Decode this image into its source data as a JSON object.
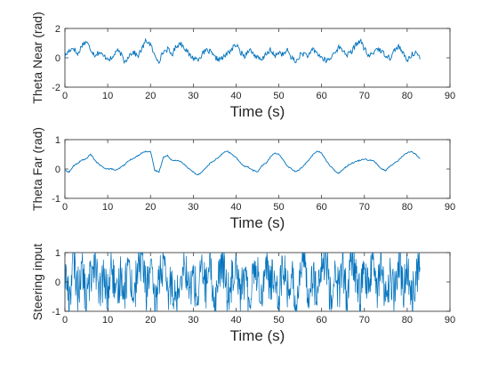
{
  "colors": {
    "line": "#0072BD",
    "axes": "#262626",
    "background": "#ffffff"
  },
  "chart_data": [
    {
      "type": "line",
      "xlabel": "Time (s)",
      "ylabel": "Theta Near (rad)",
      "xlim": [
        0,
        90
      ],
      "ylim": [
        -2,
        2
      ],
      "xticks": [
        "0",
        "10",
        "20",
        "30",
        "40",
        "50",
        "60",
        "70",
        "80",
        "90"
      ],
      "yticks": [
        "-2",
        "0",
        "2"
      ],
      "grid": false,
      "series": [
        {
          "x": [
            0,
            1,
            2,
            3,
            4,
            5,
            6,
            7,
            8,
            9,
            10,
            11,
            12,
            13,
            14,
            15,
            16,
            17,
            18,
            19,
            20,
            21,
            22,
            23,
            24,
            25,
            26,
            27,
            28,
            29,
            30,
            31,
            32,
            33,
            34,
            35,
            36,
            37,
            38,
            39,
            40,
            41,
            42,
            43,
            44,
            45,
            46,
            47,
            48,
            49,
            50,
            51,
            52,
            53,
            54,
            55,
            56,
            57,
            58,
            59,
            60,
            61,
            62,
            63,
            64,
            65,
            66,
            67,
            68,
            69,
            70,
            71,
            72,
            73,
            74,
            75,
            76,
            77,
            78,
            79,
            80,
            81,
            82,
            83
          ],
          "values": [
            0.1,
            0.5,
            0.7,
            0.2,
            0.9,
            1.1,
            0.6,
            0.2,
            0.4,
            0.1,
            0.0,
            -0.1,
            0.5,
            0.3,
            -0.3,
            0.2,
            0.4,
            0.1,
            0.6,
            1.2,
            0.9,
            0.1,
            -0.2,
            0.4,
            0.6,
            0.2,
            0.8,
            1.0,
            0.7,
            0.2,
            0.0,
            -0.1,
            0.2,
            0.5,
            0.4,
            0.0,
            -0.1,
            0.0,
            0.3,
            0.6,
            0.9,
            0.4,
            0.1,
            0.6,
            0.3,
            0.0,
            -0.2,
            0.3,
            0.5,
            0.1,
            0.4,
            0.2,
            0.5,
            0.0,
            -0.3,
            0.2,
            0.3,
            0.1,
            0.6,
            0.3,
            0.0,
            -0.2,
            -0.1,
            0.4,
            0.7,
            0.5,
            0.2,
            0.4,
            0.9,
            1.2,
            0.6,
            0.1,
            0.3,
            0.7,
            0.4,
            0.2,
            0.0,
            0.5,
            0.8,
            0.3,
            -0.2,
            0.2,
            0.4,
            -0.1
          ]
        }
      ]
    },
    {
      "type": "line",
      "xlabel": "Time (s)",
      "ylabel": "Theta Far (rad)",
      "xlim": [
        0,
        90
      ],
      "ylim": [
        -1,
        1
      ],
      "xticks": [
        "0",
        "10",
        "20",
        "30",
        "40",
        "50",
        "60",
        "70",
        "80",
        "90"
      ],
      "yticks": [
        "-1",
        "0",
        "1"
      ],
      "grid": false,
      "series": [
        {
          "x": [
            0,
            1,
            2,
            3,
            4,
            5,
            6,
            7,
            8,
            9,
            10,
            11,
            12,
            13,
            14,
            15,
            16,
            17,
            18,
            19,
            20,
            21,
            22,
            23,
            24,
            25,
            26,
            27,
            28,
            29,
            30,
            31,
            32,
            33,
            34,
            35,
            36,
            37,
            38,
            39,
            40,
            41,
            42,
            43,
            44,
            45,
            46,
            47,
            48,
            49,
            50,
            51,
            52,
            53,
            54,
            55,
            56,
            57,
            58,
            59,
            60,
            61,
            62,
            63,
            64,
            65,
            66,
            67,
            68,
            69,
            70,
            71,
            72,
            73,
            74,
            75,
            76,
            77,
            78,
            79,
            80,
            81,
            82,
            83
          ],
          "values": [
            -0.05,
            -0.1,
            0.1,
            0.2,
            0.3,
            0.35,
            0.5,
            0.3,
            0.15,
            0.05,
            0.0,
            0.0,
            -0.05,
            0.05,
            0.15,
            0.3,
            0.35,
            0.45,
            0.55,
            0.6,
            0.6,
            -0.05,
            -0.1,
            0.4,
            0.45,
            0.3,
            0.3,
            0.25,
            0.15,
            0.0,
            -0.1,
            -0.2,
            -0.1,
            0.05,
            0.2,
            0.3,
            0.4,
            0.55,
            0.6,
            0.5,
            0.4,
            0.2,
            0.1,
            0.05,
            -0.05,
            -0.1,
            0.1,
            0.2,
            0.4,
            0.55,
            0.5,
            0.3,
            0.1,
            0.0,
            -0.1,
            0.0,
            0.15,
            0.3,
            0.5,
            0.6,
            0.55,
            0.3,
            0.1,
            -0.05,
            -0.15,
            0.0,
            0.1,
            0.2,
            0.25,
            0.3,
            0.35,
            0.3,
            0.3,
            0.15,
            0.0,
            -0.05,
            0.1,
            0.2,
            0.3,
            0.45,
            0.55,
            0.6,
            0.5,
            0.35
          ]
        }
      ]
    },
    {
      "type": "line",
      "xlabel": "Time (s)",
      "ylabel": "Steering input",
      "xlim": [
        0,
        90
      ],
      "ylim": [
        -1,
        1
      ],
      "xticks": [
        "0",
        "10",
        "20",
        "30",
        "40",
        "50",
        "60",
        "70",
        "80",
        "90"
      ],
      "yticks": [
        "-1",
        "0",
        "1"
      ],
      "grid": false,
      "series": [
        {
          "x": [
            0,
            1,
            2,
            3,
            4,
            5,
            6,
            7,
            8,
            9,
            10,
            11,
            12,
            13,
            14,
            15,
            16,
            17,
            18,
            19,
            20,
            21,
            22,
            23,
            24,
            25,
            26,
            27,
            28,
            29,
            30,
            31,
            32,
            33,
            34,
            35,
            36,
            37,
            38,
            39,
            40,
            41,
            42,
            43,
            44,
            45,
            46,
            47,
            48,
            49,
            50,
            51,
            52,
            53,
            54,
            55,
            56,
            57,
            58,
            59,
            60,
            61,
            62,
            63,
            64,
            65,
            66,
            67,
            68,
            69,
            70,
            71,
            72,
            73,
            74,
            75,
            76,
            77,
            78,
            79,
            80,
            81,
            82,
            83
          ],
          "values": [
            0.4,
            -0.6,
            0.8,
            -0.3,
            0.5,
            -0.7,
            0.2,
            0.9,
            -0.5,
            0.1,
            -0.4,
            0.6,
            -0.8,
            0.3,
            -0.2,
            0.7,
            -0.6,
            0.4,
            0.9,
            -0.3,
            0.5,
            -0.9,
            0.2,
            0.6,
            -0.5,
            0.1,
            -0.7,
            0.3,
            0.8,
            -0.4,
            0.2,
            -0.6,
            0.5,
            -0.2,
            0.4,
            -0.8,
            0.3,
            0.6,
            -0.5,
            0.1,
            0.9,
            -0.4,
            0.2,
            -0.7,
            0.5,
            0.3,
            -0.6,
            0.8,
            -0.2,
            0.4,
            -0.5,
            0.6,
            -0.3,
            0.2,
            -0.8,
            0.5,
            0.7,
            -0.4,
            0.3,
            -0.6,
            0.4,
            0.9,
            -0.5,
            0.2,
            -0.3,
            0.6,
            -0.7,
            0.8,
            0.3,
            -0.5,
            0.5,
            -0.4,
            0.9,
            -0.2,
            0.6,
            -0.7,
            0.3,
            -0.5,
            0.7,
            -0.3,
            0.4,
            -0.6,
            0.2,
            0.5
          ]
        }
      ]
    }
  ]
}
